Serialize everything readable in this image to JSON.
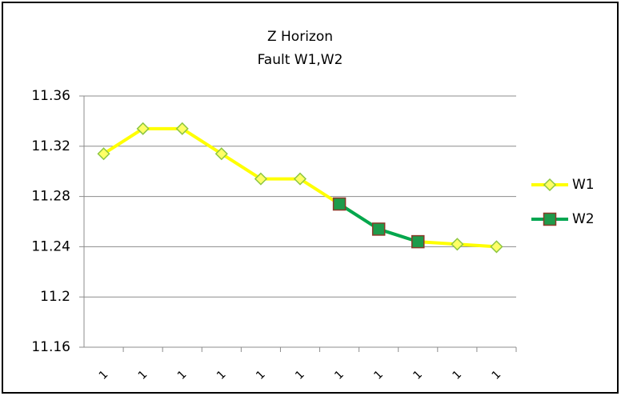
{
  "chart_data": {
    "type": "line",
    "title": "Z Horizon",
    "subtitle": "Fault W1,W2",
    "categories": [
      "1",
      "1",
      "1",
      "1",
      "1",
      "1",
      "1",
      "1",
      "1",
      "1",
      "1"
    ],
    "series": [
      {
        "name": "W1",
        "color": "#ffff00",
        "marker": "diamond",
        "marker_fill": "#ffff66",
        "marker_edge": "#8cc63f",
        "values": [
          11.314,
          11.334,
          11.334,
          11.314,
          11.294,
          11.294,
          11.274,
          11.254,
          11.244,
          11.242,
          11.24
        ]
      },
      {
        "name": "W2",
        "color": "#00a651",
        "marker": "square",
        "marker_fill": "#1e9b4b",
        "marker_edge": "#8b3a2a",
        "values": [
          null,
          null,
          null,
          null,
          null,
          null,
          11.274,
          11.254,
          11.244,
          null,
          null
        ]
      }
    ],
    "ylim": [
      11.16,
      11.36
    ],
    "yticks": [
      11.16,
      11.2,
      11.24,
      11.28,
      11.32,
      11.36
    ],
    "grid": true,
    "legend": "right"
  }
}
